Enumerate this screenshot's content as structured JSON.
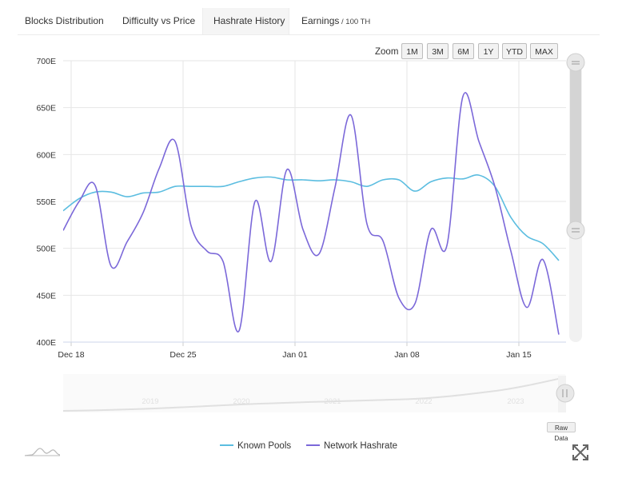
{
  "tabs": [
    {
      "label": "Blocks Distribution",
      "suffix": ""
    },
    {
      "label": "Difficulty vs Price",
      "suffix": ""
    },
    {
      "label": "Hashrate History",
      "suffix": ""
    },
    {
      "label": "Earnings",
      "suffix": " / 100 TH"
    }
  ],
  "active_tab": "Hashrate History",
  "zoom": {
    "label": "Zoom",
    "buttons": [
      "1M",
      "3M",
      "6M",
      "1Y",
      "YTD",
      "MAX"
    ]
  },
  "navigator": {
    "years": [
      "2019",
      "2020",
      "2021",
      "2022",
      "2023"
    ]
  },
  "raw_data_label": "Raw Data",
  "icons": {
    "logo": "sparkline-logo-icon",
    "fullscreen": "expand-icon"
  },
  "colors": {
    "known_pools": "#5bbde0",
    "network_hashrate": "#7b68d9",
    "grid": "#e6e6e6"
  },
  "chart_data": {
    "type": "line",
    "title": "",
    "xlabel": "",
    "ylabel": "",
    "ylim": [
      400,
      700
    ],
    "y_ticks": [
      {
        "value": 400,
        "label": "400E"
      },
      {
        "value": 450,
        "label": "450E"
      },
      {
        "value": 500,
        "label": "500E"
      },
      {
        "value": 550,
        "label": "550E"
      },
      {
        "value": 600,
        "label": "600E"
      },
      {
        "value": 650,
        "label": "650E"
      },
      {
        "value": 700,
        "label": "700E"
      }
    ],
    "xlim": [
      "Dec 18",
      "Jan 19"
    ],
    "x_ticks": [
      "Dec 18",
      "Dec 25",
      "Jan 01",
      "Jan 08",
      "Jan 15"
    ],
    "grid": true,
    "legend_position": "bottom-center",
    "series": [
      {
        "name": "Known Pools",
        "x": [
          "Dec 18",
          "Dec 19",
          "Dec 20",
          "Dec 21",
          "Dec 22",
          "Dec 23",
          "Dec 24",
          "Dec 25",
          "Dec 26",
          "Dec 27",
          "Dec 28",
          "Dec 29",
          "Dec 30",
          "Dec 31",
          "Jan 01",
          "Jan 02",
          "Jan 03",
          "Jan 04",
          "Jan 05",
          "Jan 06",
          "Jan 07",
          "Jan 08",
          "Jan 09",
          "Jan 10",
          "Jan 11",
          "Jan 12",
          "Jan 13",
          "Jan 14",
          "Jan 15",
          "Jan 16",
          "Jan 17",
          "Jan 18"
        ],
        "values": [
          540,
          553,
          560,
          560,
          555,
          559,
          560,
          566,
          566,
          566,
          566,
          571,
          575,
          576,
          573,
          573,
          572,
          573,
          571,
          566,
          573,
          573,
          561,
          571,
          575,
          574,
          578,
          566,
          533,
          513,
          505,
          487
        ]
      },
      {
        "name": "Network Hashrate",
        "x": [
          "Dec 18",
          "Dec 19",
          "Dec 20",
          "Dec 21",
          "Dec 22",
          "Dec 23",
          "Dec 24",
          "Dec 25",
          "Dec 26",
          "Dec 27",
          "Dec 28",
          "Dec 29",
          "Dec 30",
          "Dec 31",
          "Jan 01",
          "Jan 02",
          "Jan 03",
          "Jan 04",
          "Jan 05",
          "Jan 06",
          "Jan 07",
          "Jan 08",
          "Jan 09",
          "Jan 10",
          "Jan 11",
          "Jan 12",
          "Jan 13",
          "Jan 14",
          "Jan 15",
          "Jan 16",
          "Jan 17",
          "Jan 18"
        ],
        "values": [
          519,
          550,
          567,
          481,
          507,
          538,
          585,
          614,
          524,
          497,
          486,
          412,
          550,
          486,
          584,
          520,
          494,
          565,
          642,
          526,
          508,
          447,
          441,
          520,
          503,
          662,
          614,
          566,
          497,
          437,
          488,
          408
        ]
      }
    ]
  }
}
